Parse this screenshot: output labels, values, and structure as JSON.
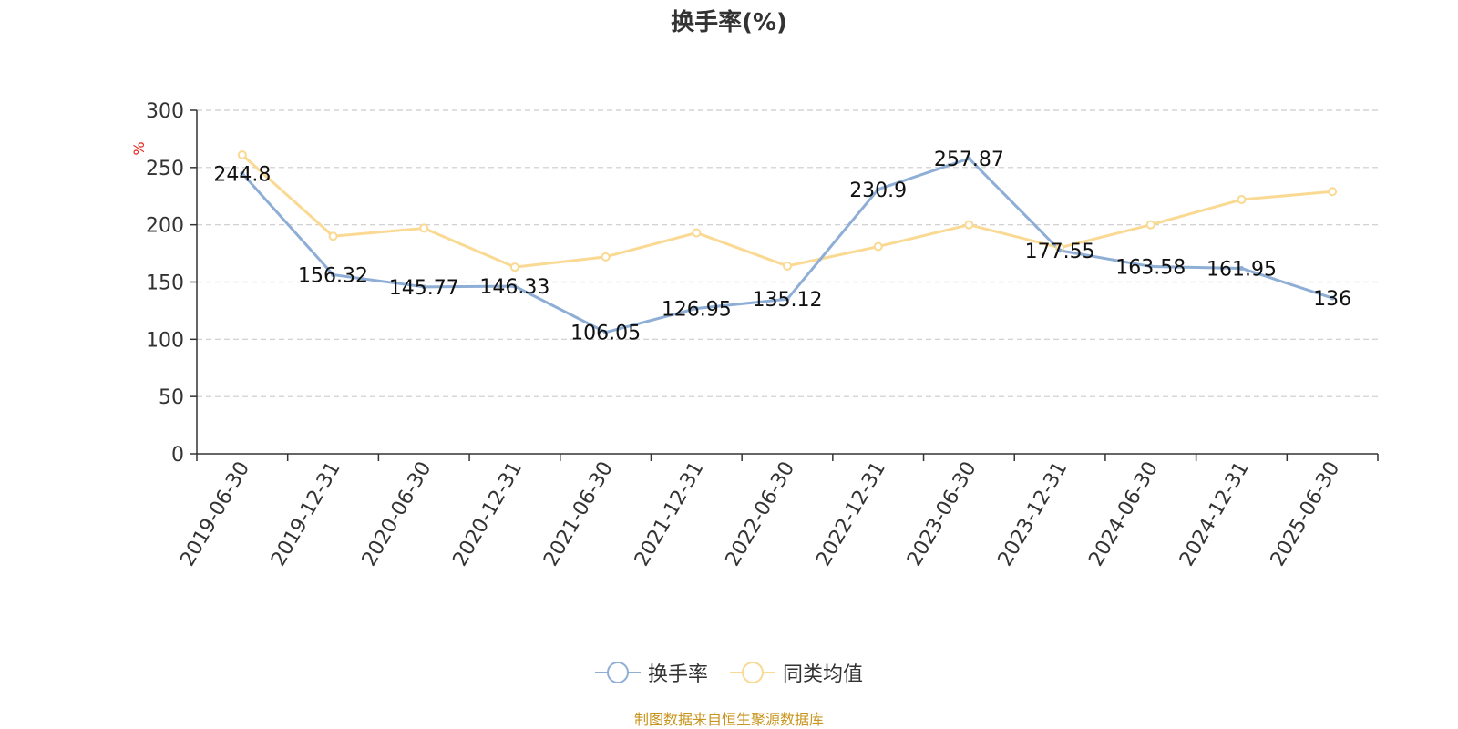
{
  "chart_data": {
    "type": "line",
    "title": "换手率(%)",
    "ylabel": "%",
    "xlabel": "",
    "ylim": [
      0,
      300
    ],
    "yticks": [
      0,
      50,
      100,
      150,
      200,
      250,
      300
    ],
    "grid": true,
    "legend_position": "bottom-center",
    "categories": [
      "2019-06-30",
      "2019-12-31",
      "2020-06-30",
      "2020-12-31",
      "2021-06-30",
      "2021-12-31",
      "2022-06-30",
      "2022-12-31",
      "2023-06-30",
      "2023-12-31",
      "2024-06-30",
      "2024-12-31",
      "2025-06-30"
    ],
    "series": [
      {
        "name": "换手率",
        "color": "#8eaed6",
        "values": [
          244.8,
          156.32,
          145.77,
          146.33,
          106.05,
          126.95,
          135.12,
          230.9,
          257.87,
          177.55,
          163.58,
          161.95,
          136
        ],
        "labels": [
          "244.8",
          "156.32",
          "145.77",
          "146.33",
          "106.05",
          "126.95",
          "135.12",
          "230.9",
          "257.87",
          "177.55",
          "163.58",
          "161.95",
          "136"
        ]
      },
      {
        "name": "同类均值",
        "color": "#fad993",
        "values": [
          261,
          190,
          197,
          163,
          172,
          193,
          164,
          181,
          200,
          180,
          200,
          222,
          229
        ]
      }
    ]
  },
  "source_text": "制图数据来自恒生聚源数据库"
}
